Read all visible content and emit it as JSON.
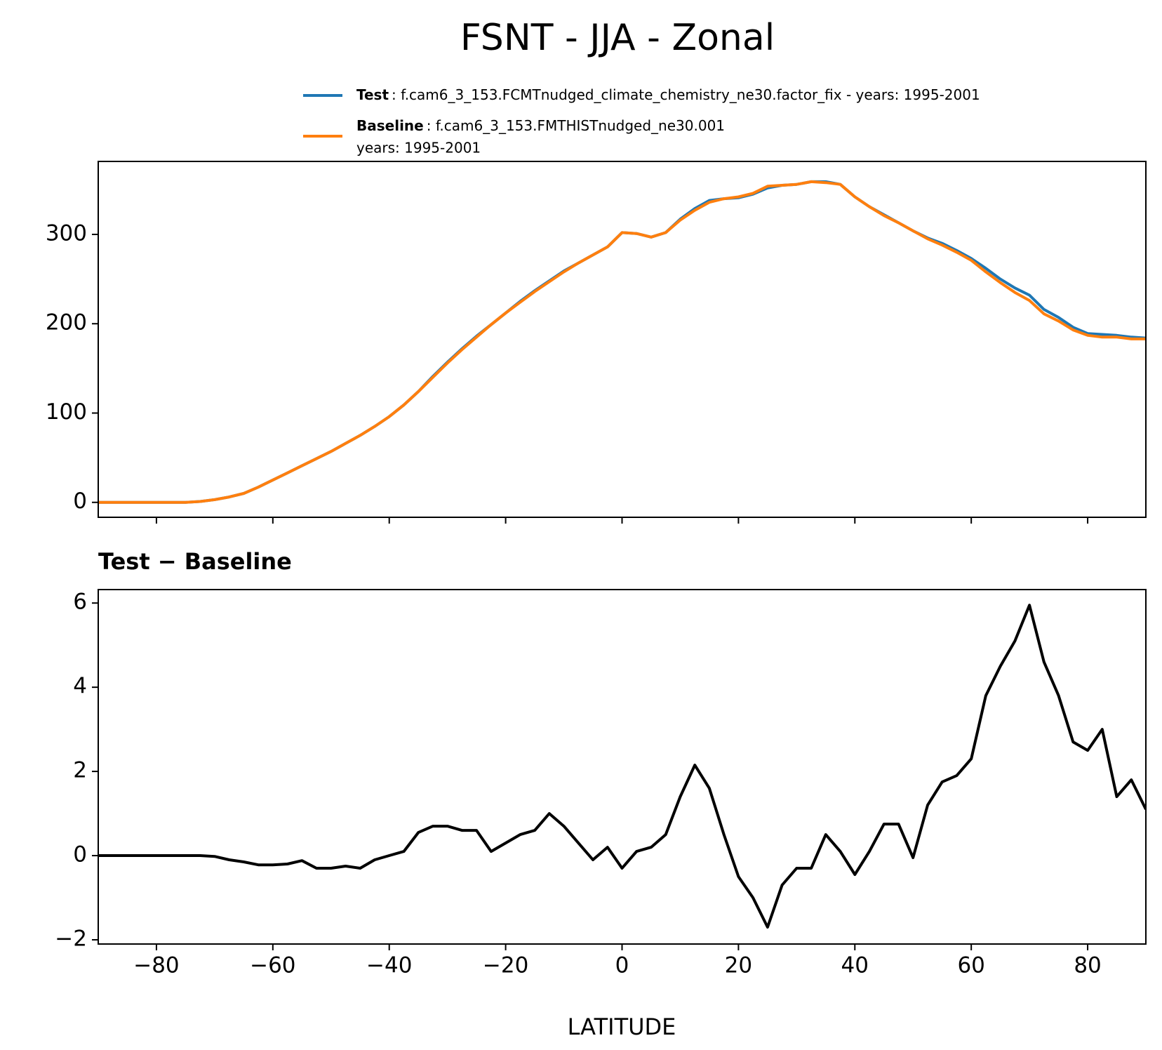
{
  "chart_data": [
    {
      "type": "line",
      "title": "FSNT - JJA - Zonal",
      "x": [
        -90,
        -87.5,
        -85,
        -82.5,
        -80,
        -77.5,
        -75,
        -72.5,
        -70,
        -67.5,
        -65,
        -62.5,
        -60,
        -57.5,
        -55,
        -52.5,
        -50,
        -47.5,
        -45,
        -42.5,
        -40,
        -37.5,
        -35,
        -32.5,
        -30,
        -27.5,
        -25,
        -22.5,
        -20,
        -17.5,
        -15,
        -12.5,
        -10,
        -7.5,
        -5,
        -2.5,
        0,
        2.5,
        5,
        7.5,
        10,
        12.5,
        15,
        17.5,
        20,
        22.5,
        25,
        27.5,
        30,
        32.5,
        35,
        37.5,
        40,
        42.5,
        45,
        47.5,
        50,
        52.5,
        55,
        57.5,
        60,
        62.5,
        65,
        67.5,
        70,
        72.5,
        75,
        77.5,
        80,
        82.5,
        85,
        87.5,
        90
      ],
      "series": [
        {
          "name": "Test",
          "legend_lines": [
            ": f.cam6_3_153.FCMTnudged_climate_chemistry_ne30.factor_fix - years: 1995-2001"
          ],
          "color": "#1f77b4",
          "values": [
            0,
            0,
            0,
            0,
            0,
            0,
            0,
            1,
            3,
            6,
            10,
            17,
            25,
            33,
            41,
            49,
            57,
            66,
            75,
            85,
            96,
            109,
            124,
            141,
            157,
            172,
            186,
            199,
            212,
            225,
            237,
            248,
            259,
            268,
            277,
            286,
            302,
            301,
            297,
            302,
            317,
            329,
            338,
            340,
            341,
            345,
            352,
            355,
            356,
            359,
            359,
            356,
            342,
            331,
            322,
            313,
            304,
            296,
            290,
            282,
            273,
            262,
            250,
            240,
            232,
            216,
            207,
            196,
            189,
            188,
            187,
            185,
            184
          ]
        },
        {
          "name": "Baseline",
          "legend_lines": [
            ": f.cam6_3_153.FMTHISTnudged_ne30.001",
            "years: 1995-2001"
          ],
          "color": "#ff7f0e",
          "values": [
            0,
            0,
            0,
            0,
            0,
            0,
            0,
            1,
            3,
            6,
            10,
            17,
            25,
            33,
            41,
            49,
            57,
            66,
            75,
            85,
            96,
            109,
            124,
            140,
            156,
            171,
            185,
            199,
            212,
            224,
            236,
            247,
            258,
            268,
            277,
            286,
            302,
            301,
            297,
            302,
            316,
            327,
            336,
            340,
            342,
            346,
            354,
            355,
            356,
            359,
            358,
            356,
            342,
            331,
            321,
            313,
            304,
            295,
            288,
            280,
            271,
            258,
            246,
            235,
            226,
            211,
            203,
            193,
            187,
            185,
            185,
            183,
            183
          ]
        }
      ],
      "xlim": [
        -90,
        90
      ],
      "xticks": [
        -80,
        -60,
        -40,
        -20,
        0,
        20,
        40,
        60,
        80
      ],
      "xticklabels": false,
      "ylim": [
        -16.7,
        381.7
      ],
      "yticks": [
        0,
        100,
        200,
        300
      ]
    },
    {
      "type": "line",
      "subtitle": "Test − Baseline",
      "xlabel": "LATITUDE",
      "x": [
        -90,
        -87.5,
        -85,
        -82.5,
        -80,
        -77.5,
        -75,
        -72.5,
        -70,
        -67.5,
        -65,
        -62.5,
        -60,
        -57.5,
        -55,
        -52.5,
        -50,
        -47.5,
        -45,
        -42.5,
        -40,
        -37.5,
        -35,
        -32.5,
        -30,
        -27.5,
        -25,
        -22.5,
        -20,
        -17.5,
        -15,
        -12.5,
        -10,
        -7.5,
        -5,
        -2.5,
        0,
        2.5,
        5,
        7.5,
        10,
        12.5,
        15,
        17.5,
        20,
        22.5,
        25,
        27.5,
        30,
        32.5,
        35,
        37.5,
        40,
        42.5,
        45,
        47.5,
        50,
        52.5,
        55,
        57.5,
        60,
        62.5,
        65,
        67.5,
        70,
        72.5,
        75,
        77.5,
        80,
        82.5,
        85,
        87.5,
        90
      ],
      "series": [
        {
          "color": "#000000",
          "values": [
            0,
            0,
            0,
            0,
            0,
            0,
            0,
            0,
            -0.02,
            -0.1,
            -0.15,
            -0.22,
            -0.22,
            -0.2,
            -0.12,
            -0.3,
            -0.3,
            -0.25,
            -0.3,
            -0.1,
            0,
            0.1,
            0.55,
            0.7,
            0.7,
            0.6,
            0.6,
            0.1,
            0.3,
            0.5,
            0.6,
            1.0,
            0.7,
            0.3,
            -0.1,
            0.2,
            -0.3,
            0.1,
            0.2,
            0.5,
            1.4,
            2.15,
            1.6,
            0.5,
            -0.5,
            -1.0,
            -1.7,
            -0.7,
            -0.3,
            -0.3,
            0.5,
            0.1,
            -0.45,
            0.1,
            0.75,
            0.75,
            -0.05,
            1.2,
            1.75,
            1.9,
            2.3,
            3.8,
            4.5,
            5.1,
            5.95,
            4.6,
            3.8,
            2.7,
            2.5,
            3.0,
            1.4,
            1.8,
            1.1
          ]
        }
      ],
      "xlim": [
        -90,
        90
      ],
      "xticks": [
        {
          "value": -80,
          "label": "−80"
        },
        {
          "value": -60,
          "label": "−60"
        },
        {
          "value": -40,
          "label": "−40"
        },
        {
          "value": -20,
          "label": "−20"
        },
        0,
        20,
        40,
        60,
        80
      ],
      "ylim": [
        -2.1,
        6.32
      ],
      "yticks": [
        {
          "value": -2,
          "label": "−2"
        },
        0,
        2,
        4,
        6
      ]
    }
  ]
}
